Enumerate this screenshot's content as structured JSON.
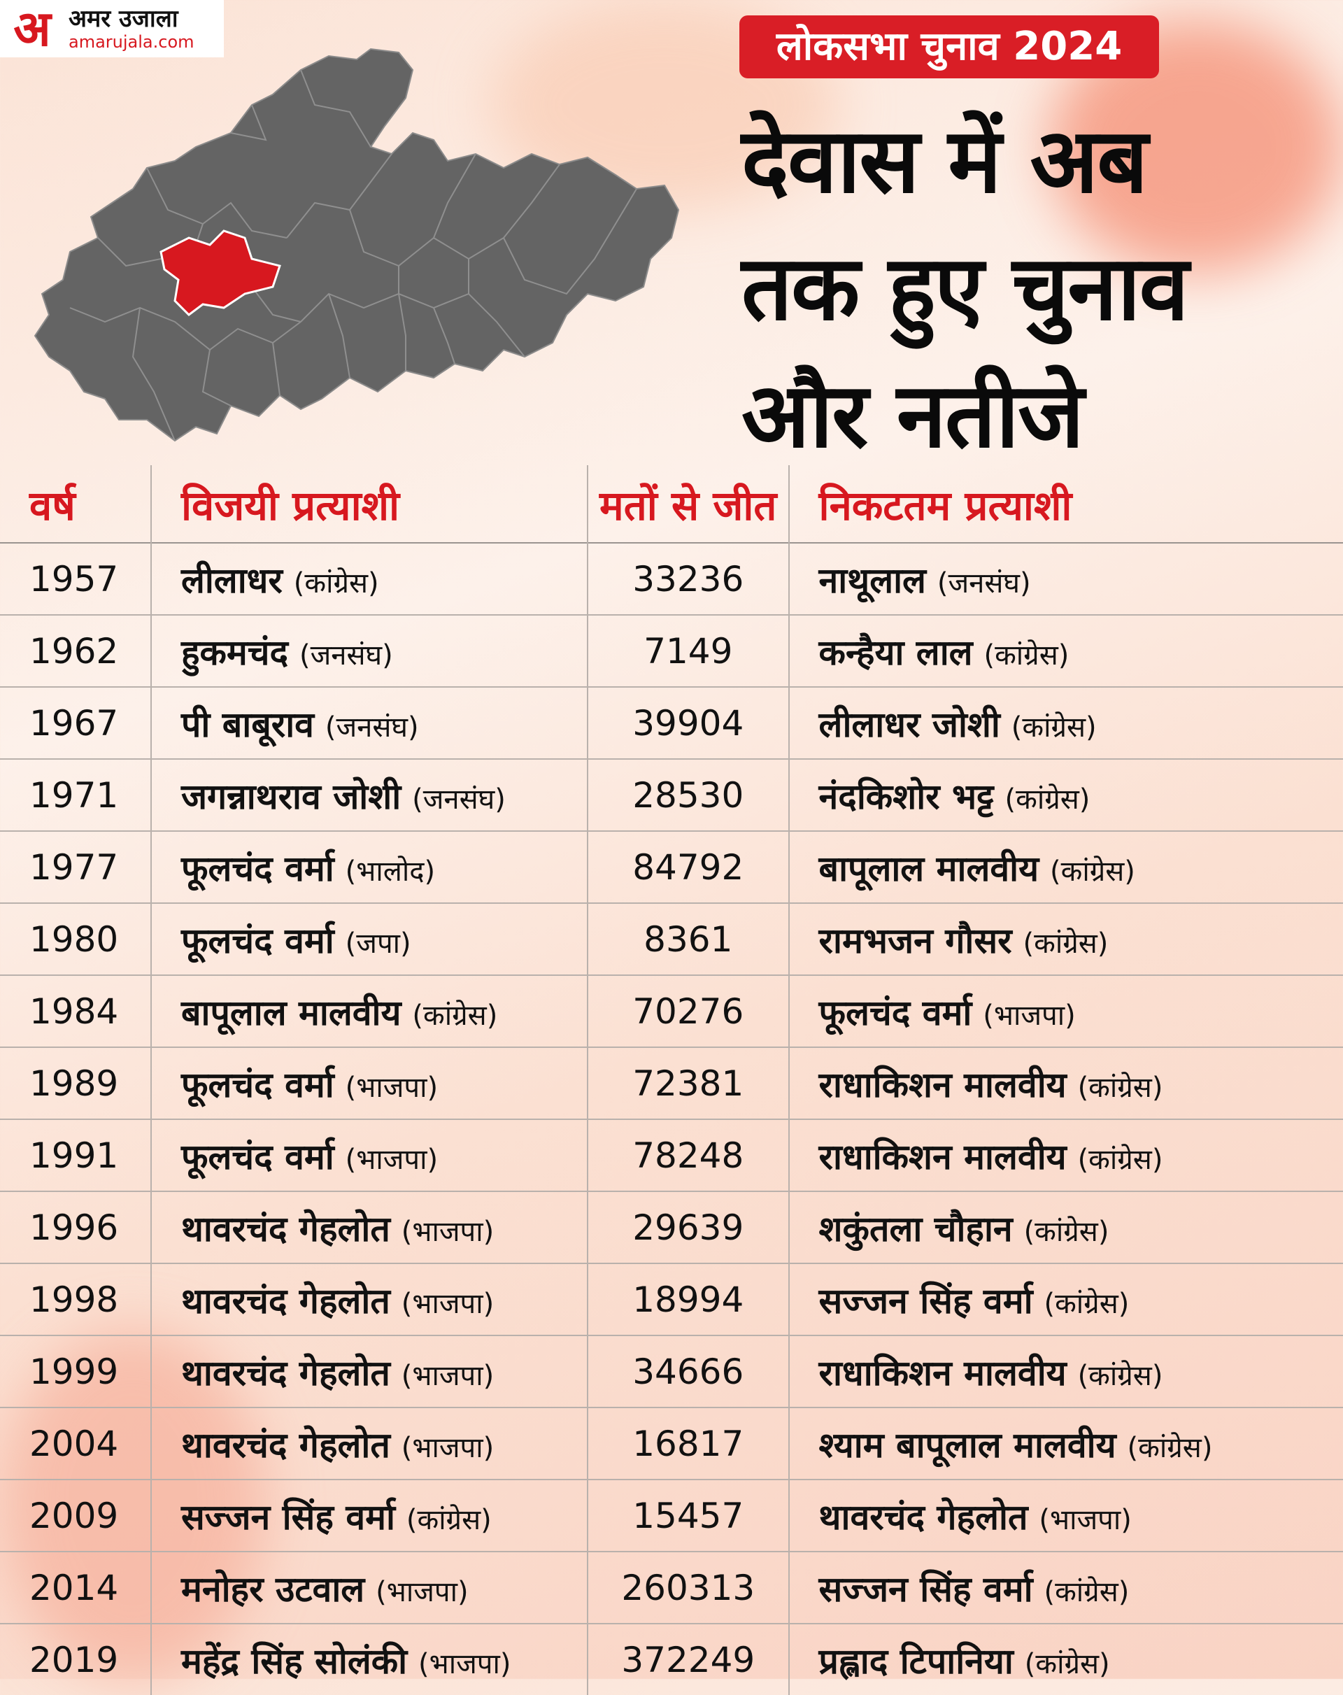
{
  "brand": {
    "logo_mark": "अ",
    "name_hi": "अमर उजाला",
    "site": "amarujala.com"
  },
  "colors": {
    "accent": "#d91e26",
    "map_fill": "#646464",
    "map_highlight": "#d7181f",
    "text": "#0a0a0a"
  },
  "badge": "लोकसभा चुनाव 2024",
  "headline": {
    "line1": "देवास में अब",
    "line2": "तक हुए चुनाव",
    "line3": "और नतीजे"
  },
  "table": {
    "headers": [
      "वर्ष",
      "विजयी प्रत्याशी",
      "मतों से जीत",
      "निकटतम प्रत्याशी"
    ],
    "rows": [
      {
        "year": "1957",
        "winner": "लीलाधर",
        "winner_party": "(कांग्रेस)",
        "margin": "33236",
        "runner": "नाथूलाल",
        "runner_party": "(जनसंघ)"
      },
      {
        "year": "1962",
        "winner": "हुकमचंद",
        "winner_party": "(जनसंघ)",
        "margin": "7149",
        "runner": "कन्हैया लाल",
        "runner_party": "(कांग्रेस)"
      },
      {
        "year": "1967",
        "winner": "पी बाबूराव",
        "winner_party": "(जनसंघ)",
        "margin": "39904",
        "runner": "लीलाधर जोशी",
        "runner_party": "(कांग्रेस)"
      },
      {
        "year": "1971",
        "winner": "जगन्नाथराव जोशी",
        "winner_party": "(जनसंघ)",
        "margin": "28530",
        "runner": "नंदकिशोर भट्ट",
        "runner_party": "(कांग्रेस)"
      },
      {
        "year": "1977",
        "winner": "फूलचंद वर्मा",
        "winner_party": "(भालोद)",
        "margin": "84792",
        "runner": "बापूलाल मालवीय",
        "runner_party": "(कांग्रेस)"
      },
      {
        "year": "1980",
        "winner": "फूलचंद वर्मा",
        "winner_party": "(जपा)",
        "margin": "8361",
        "runner": "रामभजन गौसर",
        "runner_party": "(कांग्रेस)"
      },
      {
        "year": "1984",
        "winner": "बापूलाल मालवीय",
        "winner_party": "(कांग्रेस)",
        "margin": "70276",
        "runner": "फूलचंद वर्मा",
        "runner_party": "(भाजपा)"
      },
      {
        "year": "1989",
        "winner": "फूलचंद वर्मा",
        "winner_party": "(भाजपा)",
        "margin": "72381",
        "runner": "राधाकिशन मालवीय",
        "runner_party": "(कांग्रेस)"
      },
      {
        "year": "1991",
        "winner": "फूलचंद वर्मा",
        "winner_party": "(भाजपा)",
        "margin": "78248",
        "runner": "राधाकिशन मालवीय",
        "runner_party": "(कांग्रेस)"
      },
      {
        "year": "1996",
        "winner": "थावरचंद गेहलोत",
        "winner_party": "(भाजपा)",
        "margin": "29639",
        "runner": "शकुंतला चौहान",
        "runner_party": "(कांग्रेस)"
      },
      {
        "year": "1998",
        "winner": "थावरचंद गेहलोत",
        "winner_party": "(भाजपा)",
        "margin": "18994",
        "runner": "सज्जन सिंह वर्मा",
        "runner_party": "(कांग्रेस)"
      },
      {
        "year": "1999",
        "winner": "थावरचंद गेहलोत",
        "winner_party": "(भाजपा)",
        "margin": "34666",
        "runner": "राधाकिशन मालवीय",
        "runner_party": "(कांग्रेस)"
      },
      {
        "year": "2004",
        "winner": "थावरचंद गेहलोत",
        "winner_party": "(भाजपा)",
        "margin": "16817",
        "runner": "श्याम बापूलाल मालवीय",
        "runner_party": "(कांग्रेस)"
      },
      {
        "year": "2009",
        "winner": "सज्जन सिंह वर्मा",
        "winner_party": "(कांग्रेस)",
        "margin": "15457",
        "runner": "थावरचंद गेहलोत",
        "runner_party": "(भाजपा)"
      },
      {
        "year": "2014",
        "winner": "मनोहर उटवाल",
        "winner_party": "(भाजपा)",
        "margin": "260313",
        "runner": "सज्जन सिंह वर्मा",
        "runner_party": "(कांग्रेस)"
      },
      {
        "year": "2019",
        "winner": "महेंद्र सिंह सोलंकी",
        "winner_party": "(भाजपा)",
        "margin": "372249",
        "runner": "प्रह्लाद टिपानिया",
        "runner_party": "(कांग्रेस)"
      }
    ]
  }
}
